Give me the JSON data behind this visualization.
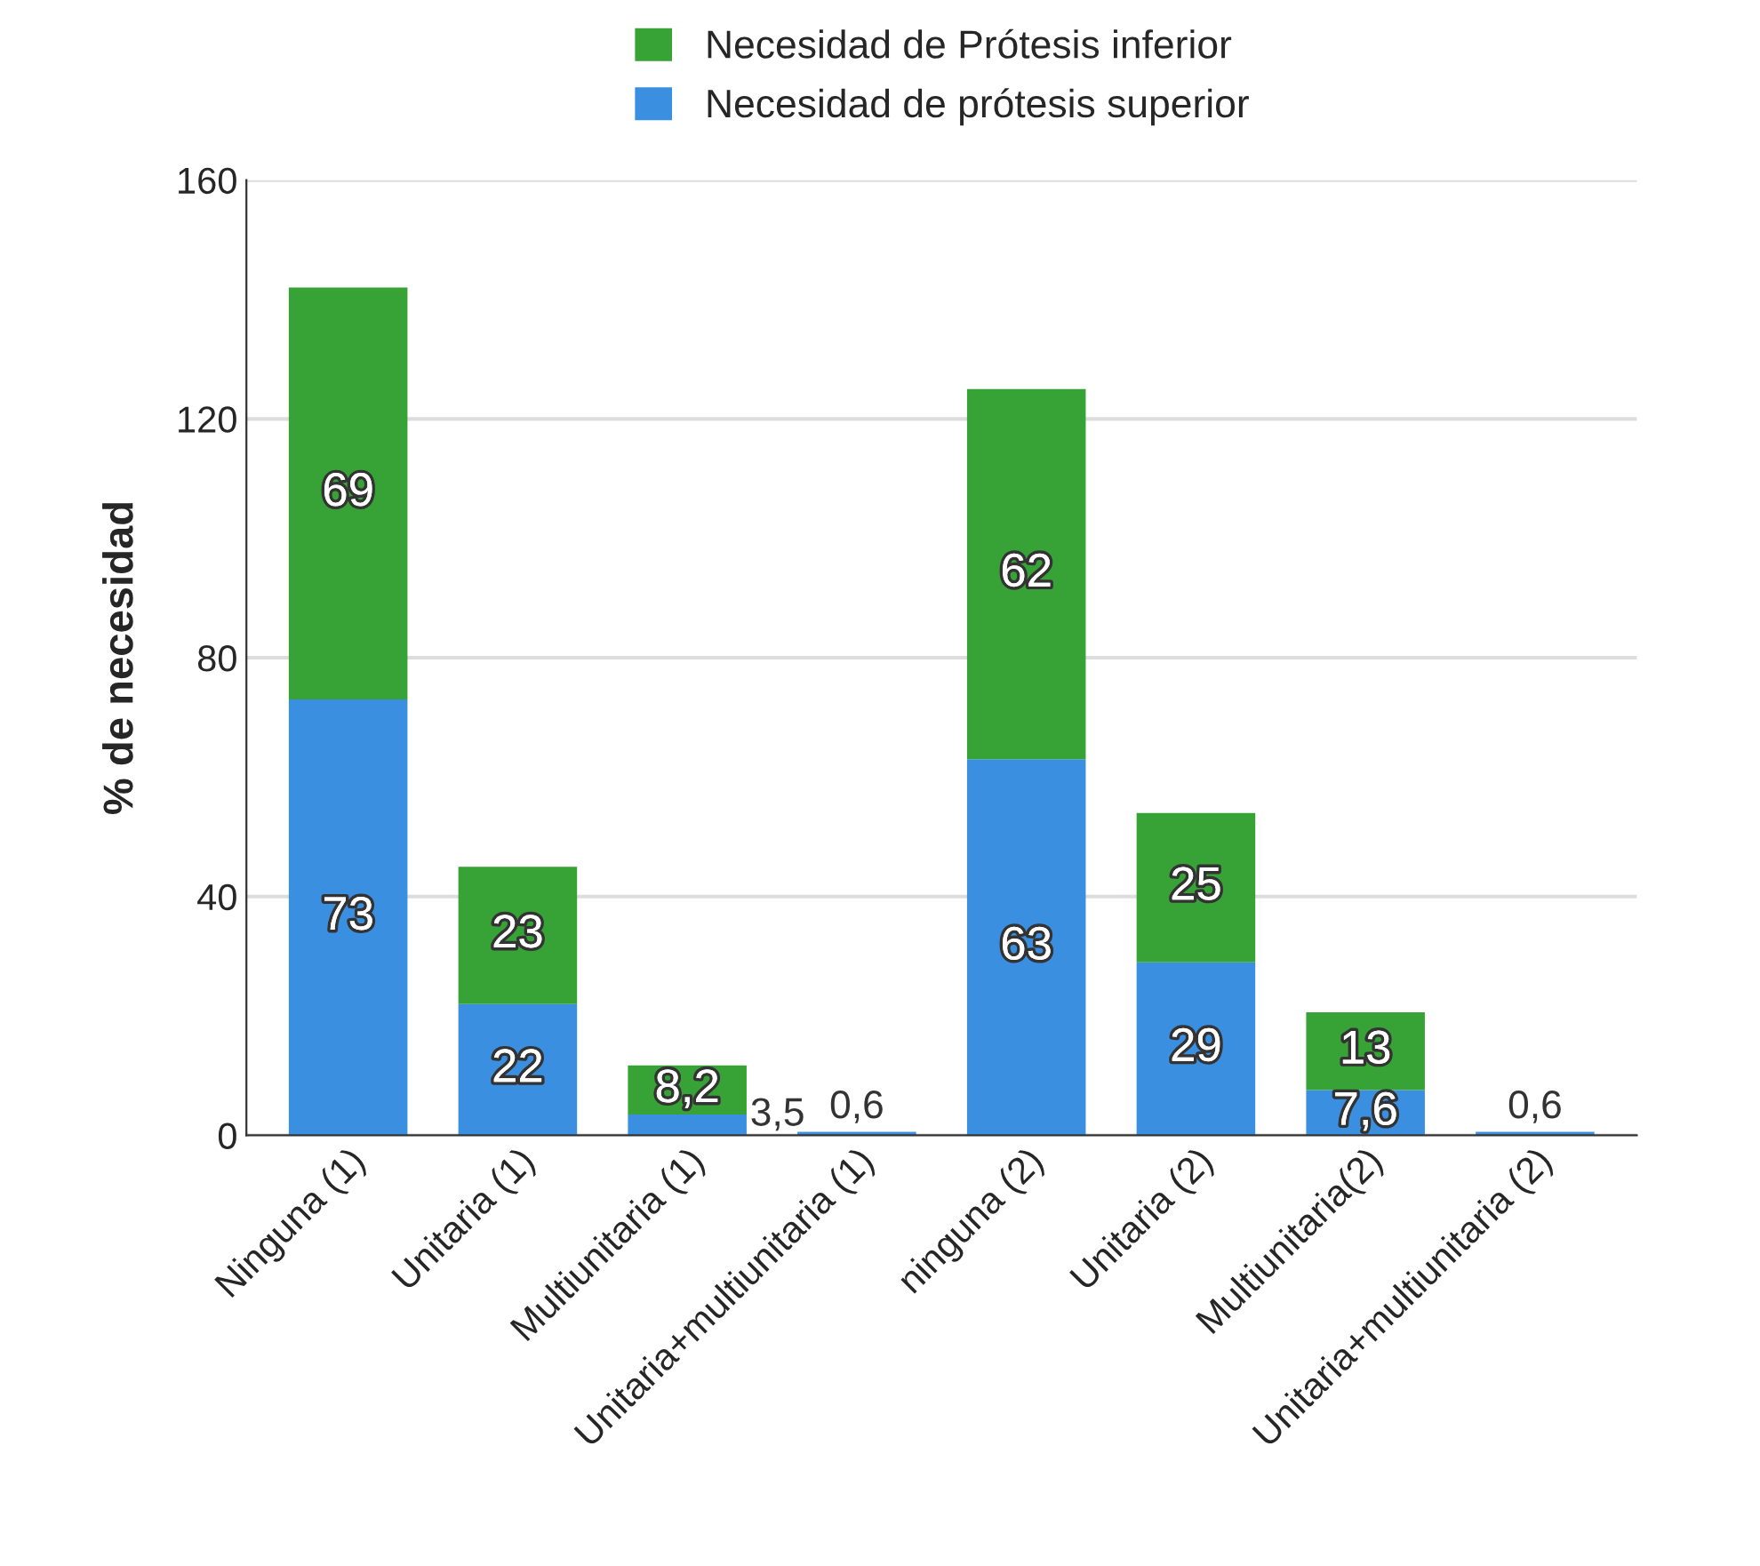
{
  "chart_data": {
    "type": "bar",
    "stacked": true,
    "categories": [
      "Ninguna (1)",
      "Unitaria (1)",
      "Multiunitaria (1)",
      "Unitaria+multiunitaria (1)",
      "ninguna (2)",
      "Unitaria (2)",
      "Multiunitaria(2)",
      "Unitaria+multiunitaria (2)"
    ],
    "series": [
      {
        "name": "Necesidad de prótesis superior",
        "color": "#3b8fe0",
        "values": [
          73,
          22,
          3.5,
          0.6,
          63,
          29,
          7.6,
          0.6
        ],
        "value_labels": [
          "73",
          "22",
          "3,5",
          "0,6",
          "63",
          "29",
          "7,6",
          "0,6"
        ]
      },
      {
        "name": "Necesidad de Prótesis inferior",
        "color": "#37a337",
        "values": [
          69,
          23,
          8.2,
          null,
          62,
          25,
          13,
          null
        ],
        "value_labels": [
          "69",
          "23",
          "8,2",
          null,
          "62",
          "25",
          "13",
          null
        ]
      }
    ],
    "ylabel": "% de necesidad",
    "ylim": [
      0,
      160
    ],
    "yticks": [
      0,
      40,
      80,
      120,
      160
    ],
    "grid": "y",
    "legend": "top"
  }
}
